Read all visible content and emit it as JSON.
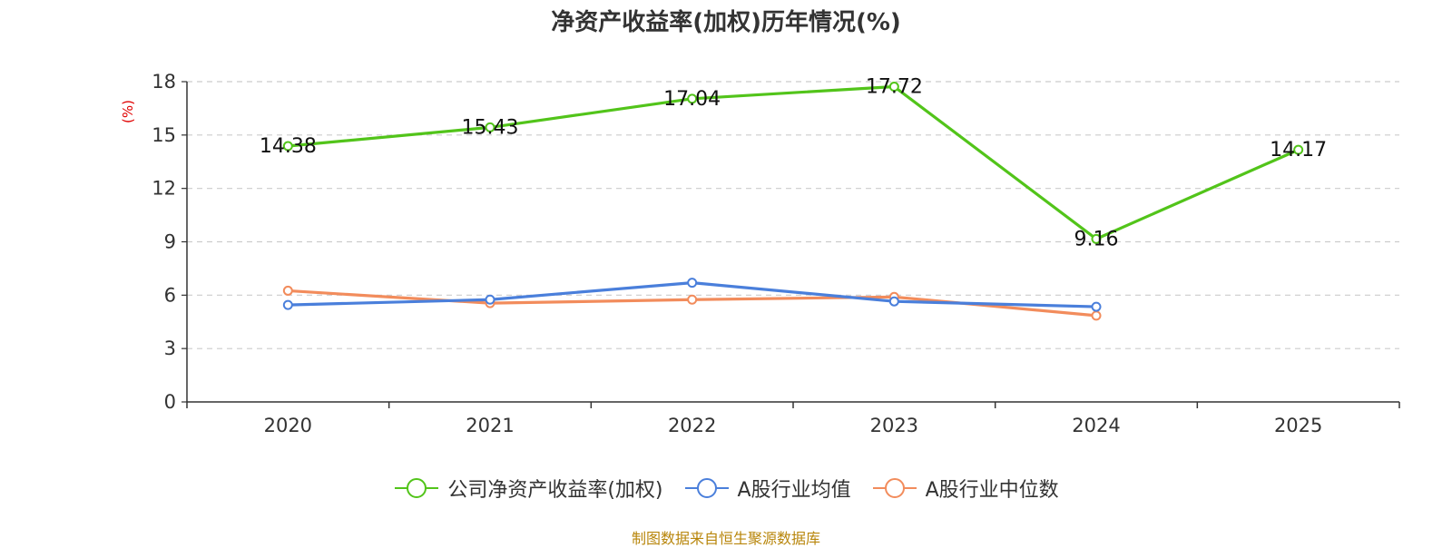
{
  "chart_data": {
    "type": "line",
    "title": "净资产收益率(加权)历年情况(%)",
    "ylabel": "(%)",
    "xlabel": "",
    "categories": [
      "2020",
      "2021",
      "2022",
      "2023",
      "2024",
      "2025"
    ],
    "ylim": [
      0,
      18
    ],
    "yticks": [
      0,
      3,
      6,
      9,
      12,
      15,
      18
    ],
    "grid": true,
    "legend_position": "bottom",
    "series": [
      {
        "name": "公司净资产收益率(加权)",
        "color": "#52c41a",
        "values": [
          14.38,
          15.43,
          17.04,
          17.72,
          9.16,
          14.17
        ],
        "labels": [
          "14.38",
          "15.43",
          "17.04",
          "17.72",
          "9.16",
          "14.17"
        ]
      },
      {
        "name": "A股行业均值",
        "color": "#4a7fdb",
        "values": [
          5.45,
          5.75,
          6.7,
          5.65,
          5.35,
          null
        ]
      },
      {
        "name": "A股行业中位数",
        "color": "#f28c5c",
        "values": [
          6.25,
          5.55,
          5.75,
          5.9,
          4.85,
          null
        ]
      }
    ]
  },
  "source": "制图数据来自恒生聚源数据库"
}
